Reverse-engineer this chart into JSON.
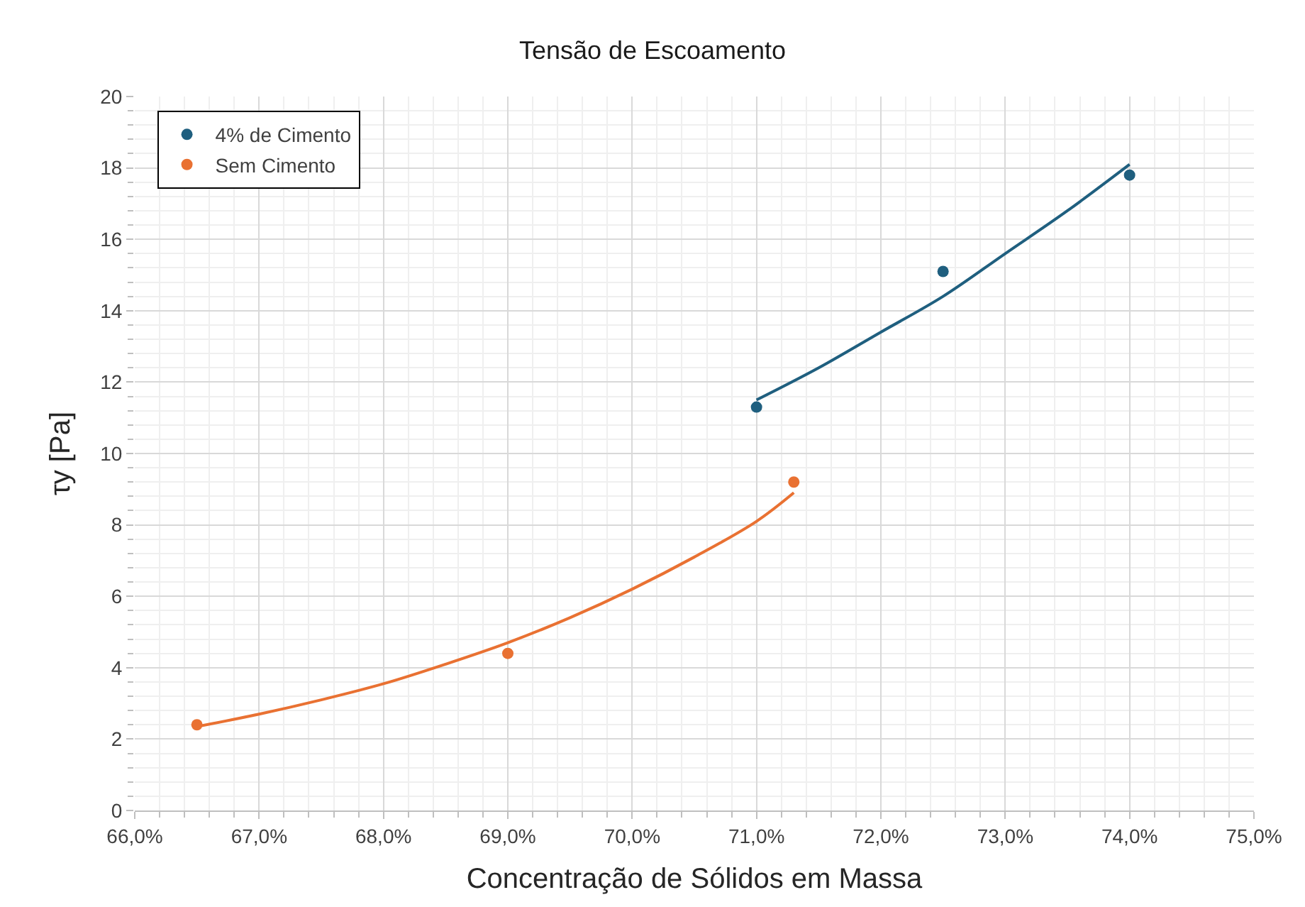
{
  "chart_data": {
    "type": "scatter",
    "title": "Tensão de Escoamento",
    "xlabel": "Concentração de Sólidos em Massa",
    "ylabel": "τy [Pa]",
    "xlim": [
      66,
      75
    ],
    "xticks": [
      {
        "value": 66,
        "label": "66,0%"
      },
      {
        "value": 67,
        "label": "67,0%"
      },
      {
        "value": 68,
        "label": "68,0%"
      },
      {
        "value": 69,
        "label": "69,0%"
      },
      {
        "value": 70,
        "label": "70,0%"
      },
      {
        "value": 71,
        "label": "71,0%"
      },
      {
        "value": 72,
        "label": "72,0%"
      },
      {
        "value": 73,
        "label": "73,0%"
      },
      {
        "value": 74,
        "label": "74,0%"
      },
      {
        "value": 75,
        "label": "75,0%"
      }
    ],
    "ylim": [
      0,
      20
    ],
    "yticks": [
      0,
      2,
      4,
      6,
      8,
      10,
      12,
      14,
      16,
      18,
      20
    ],
    "grid": true,
    "legend": "top left",
    "marker": "circle",
    "series": [
      {
        "name": "4% de Cimento",
        "color": "#1f5f7f",
        "x": [
          71.0,
          72.5,
          74.0
        ],
        "values": [
          11.3,
          15.1,
          17.8
        ]
      },
      {
        "name": "Sem Cimento",
        "color": "#e97132",
        "x": [
          66.5,
          69.0,
          71.3
        ],
        "values": [
          2.4,
          4.4,
          9.2
        ]
      },
      {
        "type": "line",
        "marker": "none",
        "color": "#1f5f7f",
        "x": [
          71.0,
          71.5,
          72.0,
          72.5,
          73.0,
          73.5,
          74.0
        ],
        "values": [
          11.5,
          12.4,
          13.4,
          14.4,
          15.6,
          16.8,
          18.1
        ]
      },
      {
        "type": "line",
        "marker": "none",
        "color": "#e97132",
        "x": [
          66.5,
          67.0,
          67.5,
          68.0,
          68.5,
          69.0,
          69.5,
          70.0,
          70.5,
          71.0,
          71.3
        ],
        "values": [
          2.35,
          2.7,
          3.1,
          3.55,
          4.1,
          4.7,
          5.4,
          6.2,
          7.1,
          8.1,
          8.9
        ]
      }
    ]
  }
}
